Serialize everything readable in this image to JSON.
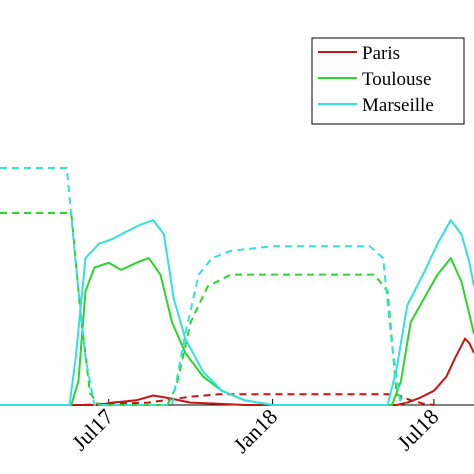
{
  "chart_data": {
    "type": "line",
    "x_unit": "month",
    "xlim": [
      "2017-03-01",
      "2018-08-15"
    ],
    "ylim": [
      0,
      1.0
    ],
    "xticks": [
      {
        "x": "2017-07-01",
        "label": "Jul17"
      },
      {
        "x": "2018-01-01",
        "label": "Jan18"
      },
      {
        "x": "2018-07-01",
        "label": "Jul18"
      }
    ],
    "grid": false,
    "legend": {
      "position": "top-right",
      "entries": [
        "Paris",
        "Toulouse",
        "Marseille"
      ]
    },
    "colors": {
      "Paris": "#c81414",
      "Toulouse": "#2ad62a",
      "Marseille": "#33e0e0"
    },
    "series": [
      {
        "name": "Paris",
        "style": "solid",
        "points": [
          [
            "2017-03-01",
            0
          ],
          [
            "2017-06-20",
            0
          ],
          [
            "2017-07-05",
            0.01
          ],
          [
            "2017-08-01",
            0.02
          ],
          [
            "2017-08-20",
            0.04
          ],
          [
            "2017-09-05",
            0.03
          ],
          [
            "2017-10-01",
            0.01
          ],
          [
            "2017-11-01",
            0.005
          ],
          [
            "2017-12-01",
            0
          ],
          [
            "2018-05-20",
            0
          ],
          [
            "2018-06-01",
            0.01
          ],
          [
            "2018-06-15",
            0.03
          ],
          [
            "2018-07-01",
            0.06
          ],
          [
            "2018-07-15",
            0.12
          ],
          [
            "2018-07-25",
            0.2
          ],
          [
            "2018-08-05",
            0.28
          ],
          [
            "2018-08-10",
            0.26
          ],
          [
            "2018-08-15",
            0.22
          ]
        ]
      },
      {
        "name": "Paris",
        "style": "dashed",
        "points": [
          [
            "2017-03-01",
            0
          ],
          [
            "2017-06-01",
            0
          ],
          [
            "2017-07-01",
            0.005
          ],
          [
            "2017-08-15",
            0.01
          ],
          [
            "2017-09-01",
            0.02
          ],
          [
            "2017-10-01",
            0.035
          ],
          [
            "2017-11-01",
            0.045
          ],
          [
            "2018-01-01",
            0.045
          ],
          [
            "2018-05-20",
            0.045
          ],
          [
            "2018-06-05",
            0.02
          ],
          [
            "2018-06-20",
            0.005
          ],
          [
            "2018-07-01",
            0
          ]
        ]
      },
      {
        "name": "Toulouse",
        "style": "solid",
        "points": [
          [
            "2017-03-01",
            0
          ],
          [
            "2017-05-20",
            0
          ],
          [
            "2017-05-28",
            0.1
          ],
          [
            "2017-06-05",
            0.48
          ],
          [
            "2017-06-15",
            0.58
          ],
          [
            "2017-07-01",
            0.6
          ],
          [
            "2017-07-15",
            0.57
          ],
          [
            "2017-08-01",
            0.6
          ],
          [
            "2017-08-15",
            0.62
          ],
          [
            "2017-08-28",
            0.55
          ],
          [
            "2017-09-10",
            0.35
          ],
          [
            "2017-09-25",
            0.22
          ],
          [
            "2017-10-15",
            0.12
          ],
          [
            "2017-11-05",
            0.06
          ],
          [
            "2017-12-01",
            0.02
          ],
          [
            "2018-01-01",
            0
          ],
          [
            "2018-05-15",
            0
          ],
          [
            "2018-05-25",
            0.1
          ],
          [
            "2018-06-05",
            0.35
          ],
          [
            "2018-06-20",
            0.45
          ],
          [
            "2018-07-05",
            0.55
          ],
          [
            "2018-07-20",
            0.62
          ],
          [
            "2018-08-01",
            0.52
          ],
          [
            "2018-08-10",
            0.38
          ],
          [
            "2018-08-15",
            0.3
          ]
        ]
      },
      {
        "name": "Toulouse",
        "style": "dashed",
        "points": [
          [
            "2017-03-01",
            0.81
          ],
          [
            "2017-05-20",
            0.81
          ],
          [
            "2017-05-30",
            0.4
          ],
          [
            "2017-06-10",
            0.05
          ],
          [
            "2017-06-20",
            0
          ],
          [
            "2017-09-05",
            0
          ],
          [
            "2017-09-15",
            0.08
          ],
          [
            "2017-10-01",
            0.35
          ],
          [
            "2017-10-20",
            0.5
          ],
          [
            "2017-11-15",
            0.55
          ],
          [
            "2018-01-01",
            0.55
          ],
          [
            "2018-04-25",
            0.55
          ],
          [
            "2018-05-10",
            0.48
          ],
          [
            "2018-05-20",
            0.05
          ],
          [
            "2018-06-01",
            0
          ]
        ]
      },
      {
        "name": "Marseille",
        "style": "solid",
        "points": [
          [
            "2017-03-01",
            0
          ],
          [
            "2017-05-18",
            0
          ],
          [
            "2017-05-25",
            0.2
          ],
          [
            "2017-06-05",
            0.62
          ],
          [
            "2017-06-20",
            0.68
          ],
          [
            "2017-07-05",
            0.7
          ],
          [
            "2017-07-20",
            0.73
          ],
          [
            "2017-08-05",
            0.76
          ],
          [
            "2017-08-20",
            0.78
          ],
          [
            "2017-09-01",
            0.72
          ],
          [
            "2017-09-12",
            0.45
          ],
          [
            "2017-09-25",
            0.28
          ],
          [
            "2017-10-15",
            0.14
          ],
          [
            "2017-11-05",
            0.06
          ],
          [
            "2017-12-01",
            0.02
          ],
          [
            "2018-01-01",
            0
          ],
          [
            "2018-05-10",
            0
          ],
          [
            "2018-05-20",
            0.15
          ],
          [
            "2018-06-01",
            0.42
          ],
          [
            "2018-06-20",
            0.56
          ],
          [
            "2018-07-05",
            0.68
          ],
          [
            "2018-07-20",
            0.78
          ],
          [
            "2018-08-01",
            0.72
          ],
          [
            "2018-08-10",
            0.6
          ],
          [
            "2018-08-15",
            0.5
          ]
        ]
      },
      {
        "name": "Marseille",
        "style": "dashed",
        "points": [
          [
            "2017-03-01",
            1.0
          ],
          [
            "2017-05-15",
            1.0
          ],
          [
            "2017-05-25",
            0.6
          ],
          [
            "2017-06-05",
            0.2
          ],
          [
            "2017-06-15",
            0
          ],
          [
            "2017-09-10",
            0
          ],
          [
            "2017-09-25",
            0.3
          ],
          [
            "2017-10-10",
            0.55
          ],
          [
            "2017-10-25",
            0.62
          ],
          [
            "2017-11-15",
            0.65
          ],
          [
            "2018-01-01",
            0.67
          ],
          [
            "2018-04-20",
            0.67
          ],
          [
            "2018-05-05",
            0.62
          ],
          [
            "2018-05-15",
            0.25
          ],
          [
            "2018-05-25",
            0
          ]
        ]
      }
    ]
  }
}
